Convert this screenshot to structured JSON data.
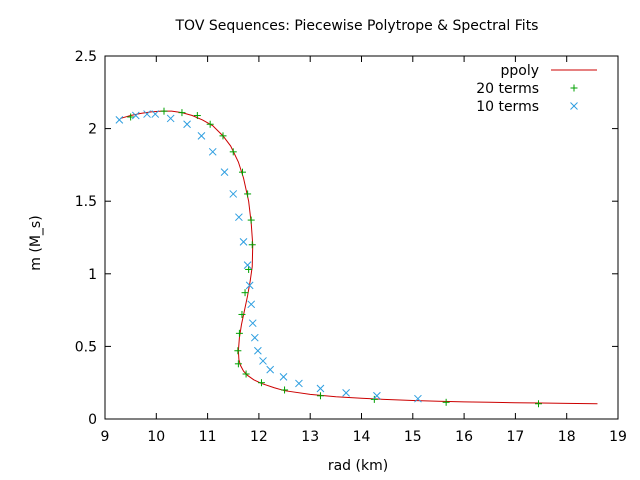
{
  "chart_data": {
    "type": "line",
    "title": "TOV Sequences: Piecewise Polytrope & Spectral Fits",
    "xlabel": "rad (km)",
    "ylabel": "m (M_s)",
    "xlim": [
      9,
      19
    ],
    "ylim": [
      0,
      2.5
    ],
    "xticks": [
      9,
      10,
      11,
      12,
      13,
      14,
      15,
      16,
      17,
      18,
      19
    ],
    "yticks": [
      0,
      0.5,
      1,
      1.5,
      2,
      2.5
    ],
    "grid": false,
    "legend_position": "top-right",
    "colors": {
      "ppoly": "#cc0000",
      "terms20": "#00a000",
      "terms10": "#2e9ee0",
      "axis": "#000000"
    },
    "series": [
      {
        "name": "ppoly",
        "style": "line",
        "x": [
          9.3,
          9.5,
          9.7,
          9.9,
          10.1,
          10.3,
          10.5,
          10.7,
          10.9,
          11.1,
          11.3,
          11.45,
          11.6,
          11.7,
          11.8,
          11.85,
          11.88,
          11.87,
          11.83,
          11.78,
          11.72,
          11.66,
          11.62,
          11.6,
          11.61,
          11.64,
          11.7,
          11.78,
          11.9,
          12.05,
          12.3,
          12.5,
          13.0,
          13.5,
          14.0,
          14.5,
          15.0,
          15.5,
          16.0,
          16.5,
          17.0,
          17.5,
          18.0,
          18.6
        ],
        "y": [
          2.07,
          2.09,
          2.105,
          2.115,
          2.12,
          2.12,
          2.11,
          2.09,
          2.06,
          2.02,
          1.95,
          1.88,
          1.77,
          1.66,
          1.5,
          1.35,
          1.2,
          1.05,
          0.95,
          0.85,
          0.75,
          0.65,
          0.56,
          0.47,
          0.41,
          0.37,
          0.33,
          0.3,
          0.27,
          0.245,
          0.215,
          0.195,
          0.17,
          0.153,
          0.143,
          0.134,
          0.127,
          0.122,
          0.118,
          0.115,
          0.112,
          0.11,
          0.108,
          0.105
        ]
      },
      {
        "name": "20 terms",
        "style": "plus",
        "x": [
          9.5,
          10.15,
          10.5,
          10.8,
          11.05,
          11.3,
          11.5,
          11.68,
          11.78,
          11.85,
          11.87,
          11.8,
          11.73,
          11.67,
          11.62,
          11.59,
          11.6,
          11.75,
          12.05,
          12.5,
          13.2,
          14.25,
          15.65,
          17.45
        ],
        "y": [
          2.08,
          2.12,
          2.11,
          2.09,
          2.03,
          1.95,
          1.84,
          1.7,
          1.55,
          1.37,
          1.2,
          1.03,
          0.87,
          0.72,
          0.59,
          0.47,
          0.38,
          0.31,
          0.25,
          0.2,
          0.16,
          0.135,
          0.115,
          0.105
        ]
      },
      {
        "name": "10 terms",
        "style": "cross",
        "x": [
          9.28,
          9.6,
          9.82,
          9.98,
          10.28,
          10.6,
          10.88,
          11.1,
          11.33,
          11.5,
          11.61,
          11.7,
          11.78,
          11.82,
          11.85,
          11.88,
          11.92,
          11.98,
          12.08,
          12.22,
          12.48,
          12.78,
          13.2,
          13.7,
          14.3,
          15.1
        ],
        "y": [
          2.06,
          2.09,
          2.1,
          2.1,
          2.07,
          2.03,
          1.95,
          1.84,
          1.7,
          1.55,
          1.39,
          1.22,
          1.06,
          0.92,
          0.79,
          0.66,
          0.56,
          0.47,
          0.4,
          0.34,
          0.29,
          0.245,
          0.21,
          0.18,
          0.16,
          0.14
        ]
      }
    ]
  }
}
